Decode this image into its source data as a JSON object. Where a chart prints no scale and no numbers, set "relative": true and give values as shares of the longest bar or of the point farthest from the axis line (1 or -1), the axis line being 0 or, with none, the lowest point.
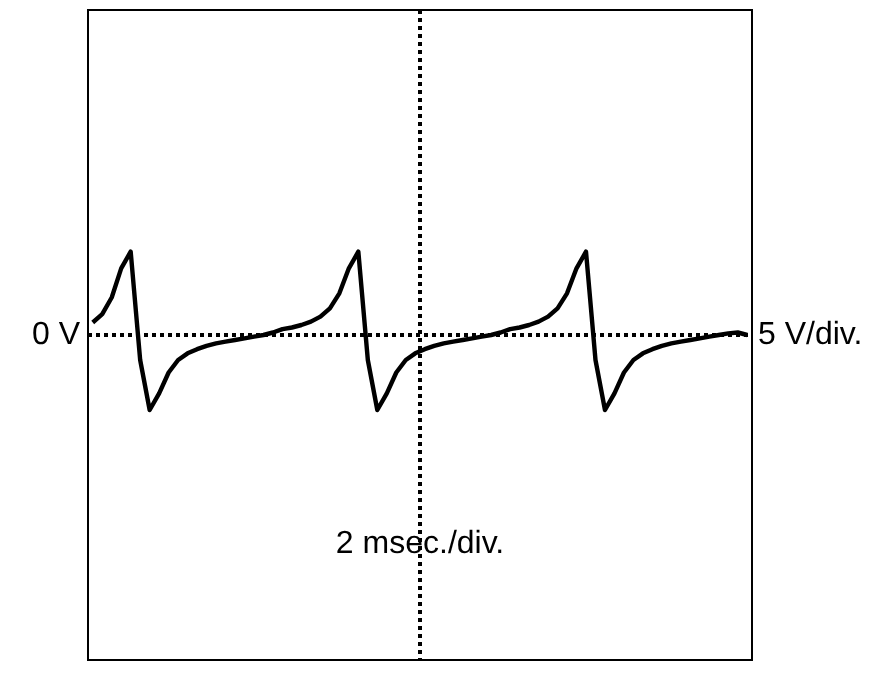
{
  "chart_data": {
    "type": "line",
    "relative": true,
    "categories": [
      null,
      null,
      null,
      null,
      null,
      null,
      null,
      null,
      null,
      null,
      null,
      null,
      null,
      null,
      null,
      null,
      null,
      null,
      null,
      null,
      null,
      null,
      null,
      null,
      null,
      null,
      null,
      null,
      null,
      null,
      null,
      null,
      null,
      null,
      null,
      null,
      null,
      null,
      null,
      null,
      null,
      null,
      null,
      null,
      null,
      null,
      null,
      null,
      null,
      null,
      null,
      null,
      null,
      null,
      null,
      null,
      null,
      null,
      null,
      null,
      null,
      null,
      null,
      null,
      null,
      null,
      null,
      null,
      null,
      null
    ],
    "series": [
      {
        "color": "#000000",
        "values": [
          0.15,
          0.25,
          0.45,
          0.8,
          1.0,
          -0.3,
          -0.9,
          -0.7,
          -0.45,
          -0.3,
          -0.22,
          -0.17,
          -0.13,
          -0.1,
          -0.08,
          -0.06,
          -0.04,
          -0.02,
          0,
          0.03,
          0.07,
          0.09,
          0.12,
          0.16,
          0.22,
          0.32,
          0.5,
          0.8,
          1.0,
          -0.3,
          -0.9,
          -0.7,
          -0.45,
          -0.3,
          -0.22,
          -0.17,
          -0.13,
          -0.1,
          -0.08,
          -0.06,
          -0.04,
          -0.02,
          0,
          0.03,
          0.07,
          0.09,
          0.12,
          0.16,
          0.22,
          0.32,
          0.5,
          0.8,
          1.0,
          -0.3,
          -0.9,
          -0.7,
          -0.45,
          -0.3,
          -0.22,
          -0.17,
          -0.13,
          -0.1,
          -0.08,
          -0.06,
          -0.04,
          -0.02,
          0,
          0.02,
          0.03,
          0
        ]
      }
    ],
    "annotations": [
      "0 V",
      "5 V/div.",
      "2 msec./div."
    ]
  }
}
